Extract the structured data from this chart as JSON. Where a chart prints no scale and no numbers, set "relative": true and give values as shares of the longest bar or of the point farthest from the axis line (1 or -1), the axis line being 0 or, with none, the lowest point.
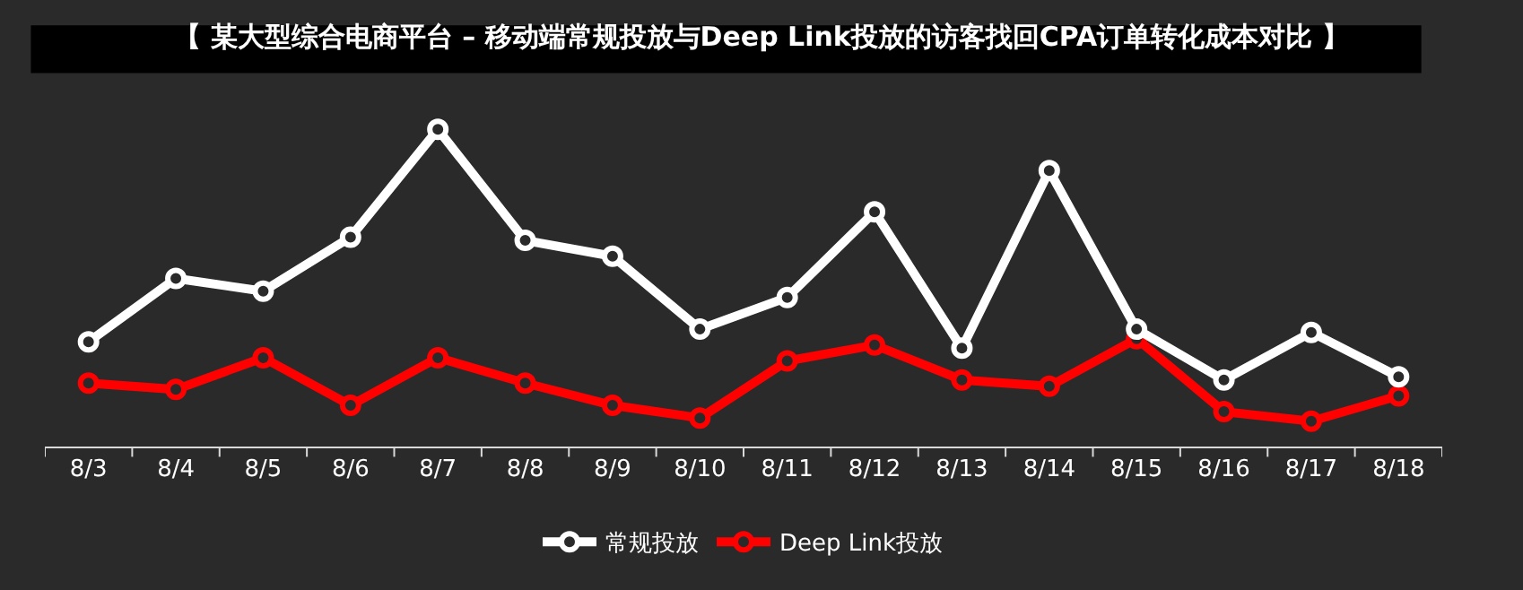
{
  "chart_data": {
    "type": "line",
    "title": "【 某大型综合电商平台 – 移动端常规投放与Deep Link投放的访客找回CPA订单转化成本对比 】",
    "relative": true,
    "categories": [
      "8/3",
      "8/4",
      "8/5",
      "8/6",
      "8/7",
      "8/8",
      "8/9",
      "8/10",
      "8/11",
      "8/12",
      "8/13",
      "8/14",
      "8/15",
      "8/16",
      "8/17",
      "8/18"
    ],
    "series": [
      {
        "name": "常规投放",
        "color": "#ffffff",
        "values": [
          0.33,
          0.53,
          0.49,
          0.66,
          1,
          0.65,
          0.6,
          0.37,
          0.47,
          0.74,
          0.31,
          0.87,
          0.37,
          0.21,
          0.36,
          0.22
        ]
      },
      {
        "name": "Deep Link投放",
        "color": "#ff0000",
        "values": [
          0.2,
          0.18,
          0.28,
          0.13,
          0.28,
          0.2,
          0.13,
          0.09,
          0.27,
          0.32,
          0.21,
          0.19,
          0.34,
          0.11,
          0.08,
          0.16
        ]
      }
    ],
    "legend": "bottom",
    "marker": "circle",
    "line_style": "solid"
  }
}
